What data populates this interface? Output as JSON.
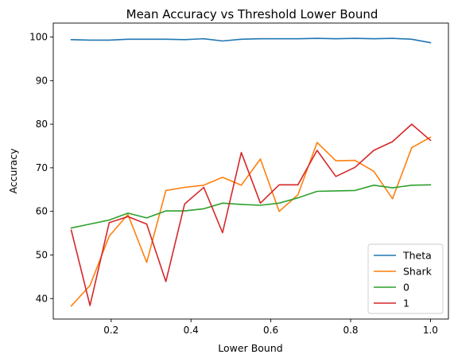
{
  "chart_data": {
    "type": "line",
    "title": "Mean Accuracy vs Threshold Lower Bound",
    "xlabel": "Lower Bound",
    "ylabel": "Accuracy",
    "xlim": [
      0.055,
      1.045
    ],
    "ylim": [
      35.3,
      103.2
    ],
    "xticks": [
      0.2,
      0.4,
      0.6,
      0.8,
      1.0
    ],
    "xtick_labels": [
      "0.2",
      "0.4",
      "0.6",
      "0.8",
      "1.0"
    ],
    "yticks": [
      40,
      50,
      60,
      70,
      80,
      90,
      100
    ],
    "ytick_labels": [
      "40",
      "50",
      "60",
      "70",
      "80",
      "90",
      "100"
    ],
    "grid": false,
    "legend_position": "lower-right",
    "x": [
      0.1,
      0.147,
      0.195,
      0.242,
      0.289,
      0.337,
      0.384,
      0.432,
      0.479,
      0.526,
      0.574,
      0.621,
      0.668,
      0.716,
      0.763,
      0.811,
      0.858,
      0.905,
      0.953,
      1.0
    ],
    "series": [
      {
        "name": "Theta",
        "color": "#1f77b4",
        "values": [
          99.4,
          99.3,
          99.3,
          99.5,
          99.5,
          99.5,
          99.4,
          99.6,
          99.1,
          99.5,
          99.6,
          99.6,
          99.6,
          99.7,
          99.6,
          99.7,
          99.6,
          99.7,
          99.5,
          98.7
        ]
      },
      {
        "name": "Shark",
        "color": "#ff7f0e",
        "values": [
          38.3,
          43.0,
          54.3,
          59.3,
          48.3,
          64.8,
          65.5,
          66.0,
          67.8,
          66.0,
          72.0,
          60.0,
          63.8,
          75.8,
          71.6,
          71.7,
          69.2,
          62.9,
          74.6,
          77.0
        ]
      },
      {
        "name": "0",
        "color": "#2ca02c",
        "values": [
          56.2,
          57.1,
          58.0,
          59.6,
          58.5,
          60.1,
          60.1,
          60.6,
          61.9,
          61.6,
          61.4,
          61.9,
          63.1,
          64.6,
          64.7,
          64.8,
          66.0,
          65.4,
          66.0,
          66.1
        ]
      },
      {
        "name": "1",
        "color": "#d62728",
        "values": [
          55.7,
          38.4,
          57.4,
          58.8,
          57.1,
          43.9,
          61.7,
          65.5,
          55.1,
          73.5,
          61.9,
          66.1,
          66.1,
          74.0,
          68.0,
          70.1,
          74.0,
          76.0,
          80.0,
          76.3
        ]
      }
    ]
  }
}
